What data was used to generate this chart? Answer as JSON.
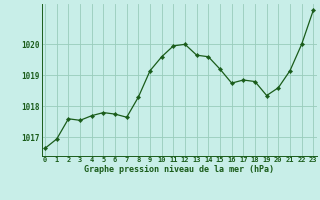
{
  "x": [
    0,
    1,
    2,
    3,
    4,
    5,
    6,
    7,
    8,
    9,
    10,
    11,
    12,
    13,
    14,
    15,
    16,
    17,
    18,
    19,
    20,
    21,
    22,
    23
  ],
  "y": [
    1016.65,
    1016.95,
    1017.6,
    1017.55,
    1017.7,
    1017.8,
    1017.75,
    1017.65,
    1018.3,
    1019.15,
    1019.6,
    1019.95,
    1020.0,
    1019.65,
    1019.6,
    1019.2,
    1018.75,
    1018.85,
    1018.8,
    1018.35,
    1018.6,
    1019.15,
    1020.0,
    1021.1
  ],
  "line_color": "#1a5c1a",
  "marker_color": "#1a5c1a",
  "bg_color": "#c8eee8",
  "grid_color": "#99ccbb",
  "xlabel": "Graphe pression niveau de la mer (hPa)",
  "xlabel_color": "#1a5c1a",
  "tick_color": "#1a5c1a",
  "ylim": [
    1016.4,
    1021.3
  ],
  "yticks": [
    1017,
    1018,
    1019,
    1020
  ],
  "xticks": [
    0,
    1,
    2,
    3,
    4,
    5,
    6,
    7,
    8,
    9,
    10,
    11,
    12,
    13,
    14,
    15,
    16,
    17,
    18,
    19,
    20,
    21,
    22,
    23
  ],
  "xlim": [
    -0.3,
    23.3
  ]
}
